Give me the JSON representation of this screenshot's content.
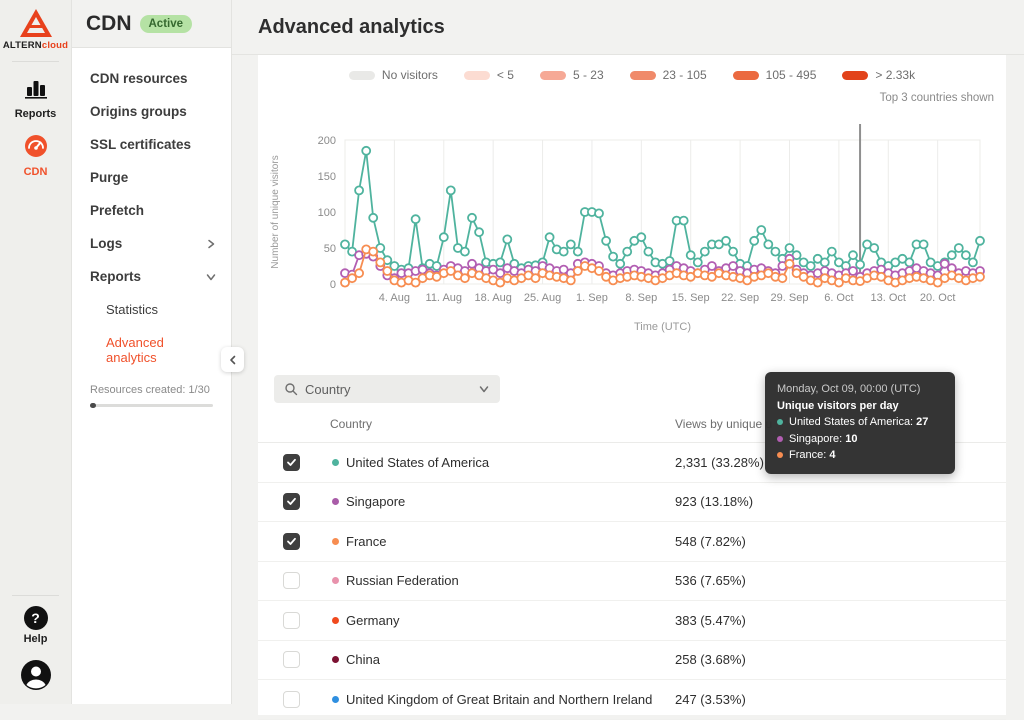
{
  "brand": {
    "primary": "ALTERN",
    "secondary": "cloud"
  },
  "rail": {
    "items": [
      {
        "label": "Reports",
        "icon": "bar-chart-icon",
        "active": false
      },
      {
        "label": "CDN",
        "icon": "gauge-icon",
        "active": true
      }
    ],
    "help_label": "Help"
  },
  "sidebar": {
    "title": "CDN",
    "status_badge": "Active",
    "items": [
      {
        "label": "CDN resources"
      },
      {
        "label": "Origins groups"
      },
      {
        "label": "SSL certificates"
      },
      {
        "label": "Purge"
      },
      {
        "label": "Prefetch"
      },
      {
        "label": "Logs",
        "chevron": "right"
      },
      {
        "label": "Reports",
        "chevron": "down"
      }
    ],
    "sub_items": [
      {
        "label": "Statistics",
        "active": false
      },
      {
        "label": "Advanced analytics",
        "active": true
      }
    ],
    "resources_note": "Resources created: 1/30",
    "resources_progress_pct": 3
  },
  "header": {
    "title": "Advanced analytics"
  },
  "legend": {
    "items": [
      {
        "label": "No visitors",
        "color": "#e9e9e7"
      },
      {
        "label": "< 5",
        "color": "#fcdcd2"
      },
      {
        "label": "5 - 23",
        "color": "#f6a996"
      },
      {
        "label": "23 - 105",
        "color": "#f08a6a"
      },
      {
        "label": "105 - 495",
        "color": "#eb6a40"
      },
      {
        "label": "> 2.33k",
        "color": "#e2431a"
      }
    ]
  },
  "top_note": "Top 3 countries shown",
  "chart_data": {
    "type": "line",
    "title": "",
    "ylabel": "Number of unique visitors",
    "xlabel": "Time (UTC)",
    "ylim": [
      0,
      200
    ],
    "yticks": [
      0,
      50,
      100,
      150,
      200
    ],
    "grid": "vertical-weekly",
    "x_start_date": "Jul 28",
    "x_ticks": [
      {
        "label": "4. Aug",
        "day": 7
      },
      {
        "label": "11. Aug",
        "day": 14
      },
      {
        "label": "18. Aug",
        "day": 21
      },
      {
        "label": "25. Aug",
        "day": 28
      },
      {
        "label": "1. Sep",
        "day": 35
      },
      {
        "label": "8. Sep",
        "day": 42
      },
      {
        "label": "15. Sep",
        "day": 49
      },
      {
        "label": "22. Sep",
        "day": 56
      },
      {
        "label": "29. Sep",
        "day": 63
      },
      {
        "label": "6. Oct",
        "day": 70
      },
      {
        "label": "13. Oct",
        "day": 77
      },
      {
        "label": "20. Oct",
        "day": 84
      }
    ],
    "crosshair_day": 73,
    "series": [
      {
        "name": "United States of America",
        "color": "#4fb39e",
        "values": [
          55,
          45,
          130,
          185,
          92,
          50,
          33,
          25,
          20,
          22,
          90,
          22,
          28,
          25,
          65,
          130,
          50,
          45,
          92,
          72,
          30,
          28,
          30,
          62,
          28,
          22,
          25,
          26,
          30,
          65,
          48,
          45,
          55,
          45,
          100,
          100,
          98,
          60,
          38,
          28,
          45,
          60,
          65,
          45,
          30,
          28,
          32,
          88,
          88,
          40,
          30,
          45,
          55,
          55,
          60,
          45,
          28,
          25,
          60,
          75,
          55,
          45,
          35,
          50,
          40,
          30,
          25,
          35,
          30,
          45,
          30,
          25,
          40,
          27,
          55,
          50,
          30,
          25,
          30,
          35,
          30,
          55,
          55,
          30,
          25,
          30,
          40,
          50,
          40,
          30,
          60
        ]
      },
      {
        "name": "Singapore",
        "color": "#b25eb2",
        "values": [
          15,
          13,
          40,
          42,
          38,
          25,
          12,
          8,
          15,
          15,
          18,
          20,
          15,
          12,
          20,
          25,
          22,
          18,
          28,
          22,
          18,
          20,
          15,
          22,
          18,
          15,
          20,
          18,
          25,
          22,
          18,
          20,
          15,
          28,
          30,
          28,
          25,
          15,
          12,
          15,
          18,
          20,
          18,
          15,
          12,
          15,
          20,
          25,
          22,
          18,
          15,
          20,
          25,
          18,
          22,
          25,
          18,
          15,
          20,
          22,
          18,
          15,
          25,
          35,
          20,
          15,
          12,
          15,
          18,
          15,
          12,
          15,
          18,
          10,
          15,
          18,
          20,
          15,
          12,
          15,
          18,
          22,
          18,
          15,
          12,
          28,
          22,
          15,
          18,
          15,
          18
        ]
      },
      {
        "name": "France",
        "color": "#f78d51",
        "values": [
          2,
          8,
          15,
          48,
          45,
          30,
          18,
          5,
          2,
          5,
          2,
          8,
          12,
          10,
          15,
          18,
          12,
          8,
          15,
          12,
          8,
          5,
          2,
          8,
          5,
          8,
          12,
          8,
          15,
          12,
          10,
          8,
          5,
          18,
          25,
          22,
          18,
          10,
          5,
          8,
          10,
          12,
          10,
          8,
          5,
          8,
          12,
          15,
          12,
          10,
          15,
          12,
          10,
          15,
          12,
          10,
          8,
          5,
          10,
          12,
          15,
          10,
          8,
          28,
          15,
          10,
          5,
          2,
          8,
          5,
          2,
          8,
          5,
          4,
          8,
          12,
          10,
          5,
          2,
          5,
          8,
          10,
          8,
          5,
          2,
          8,
          12,
          8,
          5,
          8,
          10
        ]
      }
    ]
  },
  "filter": {
    "placeholder": "Country"
  },
  "tooltip": {
    "date": "Monday, Oct 09, 00:00 (UTC)",
    "title": "Unique visitors per day",
    "rows": [
      {
        "label": "United States of America:",
        "value": "27",
        "color": "#4fb39e"
      },
      {
        "label": "Singapore:",
        "value": "10",
        "color": "#b25eb2"
      },
      {
        "label": "France:",
        "value": "4",
        "color": "#f78d51"
      }
    ]
  },
  "table": {
    "columns": [
      "Country",
      "Views by unique u"
    ],
    "rows": [
      {
        "checked": true,
        "dot_color": "#4fb39e",
        "name": "United States of America",
        "value": "2,331 (33.28%)"
      },
      {
        "checked": true,
        "dot_color": "#a95ca8",
        "name": "Singapore",
        "value": "923 (13.18%)"
      },
      {
        "checked": true,
        "dot_color": "#f78d51",
        "name": "France",
        "value": "548 (7.82%)"
      },
      {
        "checked": false,
        "dot_color": "#e892ac",
        "name": "Russian Federation",
        "value": "536 (7.65%)"
      },
      {
        "checked": false,
        "dot_color": "#f04a1e",
        "name": "Germany",
        "value": "383 (5.47%)"
      },
      {
        "checked": false,
        "dot_color": "#7c1132",
        "name": "China",
        "value": "258 (3.68%)"
      },
      {
        "checked": false,
        "dot_color": "#2f8fe0",
        "name": "United Kingdom of Great Britain and Northern Ireland",
        "value": "247 (3.53%)"
      }
    ]
  }
}
